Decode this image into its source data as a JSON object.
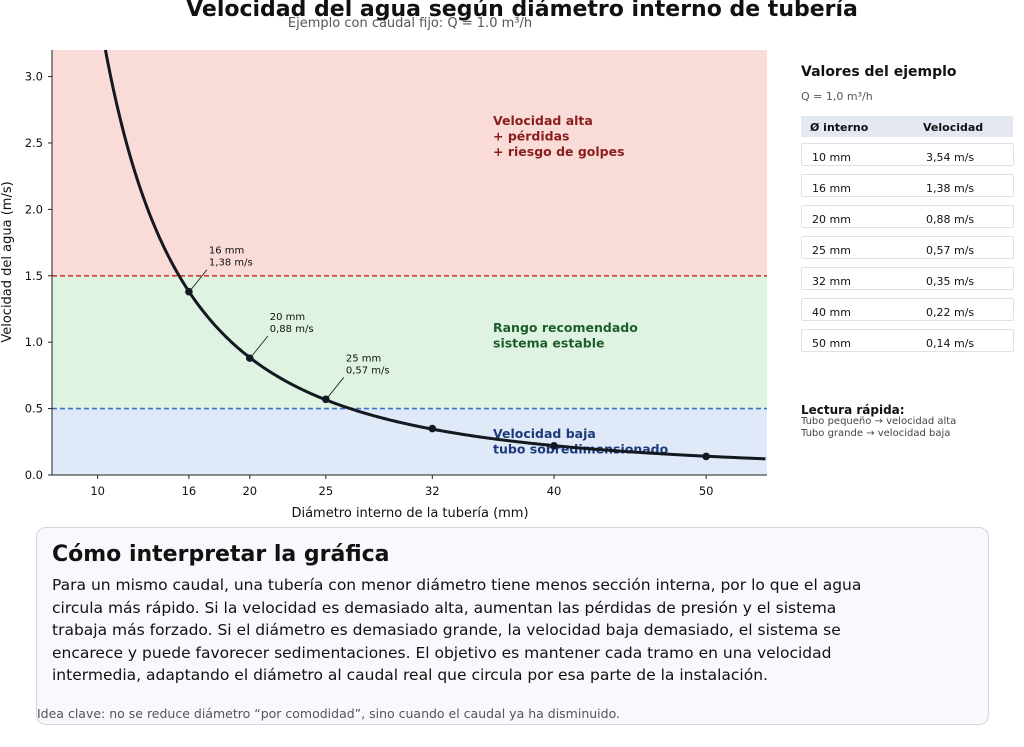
{
  "chart_data": {
    "type": "line",
    "title": "Velocidad del agua según diámetro interno de tubería",
    "subtitle": "Ejemplo con caudal fijo: Q = 1.0 m³/h",
    "xlabel": "Diámetro interno de la tubería (mm)",
    "ylabel": "Velocidad del agua (m/s)",
    "xlim": [
      7,
      54
    ],
    "ylim": [
      0,
      3.2
    ],
    "xticks": [
      10,
      16,
      20,
      25,
      32,
      40,
      50
    ],
    "yticks": [
      0.0,
      0.5,
      1.0,
      1.5,
      2.0,
      2.5,
      3.0
    ],
    "ytick_labels": [
      "0.0",
      "0.5",
      "1.0",
      "1.5",
      "2.0",
      "2.5",
      "3.0"
    ],
    "flow_m3h": 1.0,
    "curve": "v = Q / (3600 · π · (d/2000)²)",
    "points": [
      {
        "x": 16,
        "y": 1.38
      },
      {
        "x": 20,
        "y": 0.88
      },
      {
        "x": 25,
        "y": 0.57
      },
      {
        "x": 32,
        "y": 0.35
      },
      {
        "x": 40,
        "y": 0.22
      },
      {
        "x": 50,
        "y": 0.14
      }
    ],
    "annotations": [
      {
        "x": 16,
        "line1": "16 mm",
        "line2": "1,38 m/s"
      },
      {
        "x": 20,
        "line1": "20 mm",
        "line2": "0,88 m/s"
      },
      {
        "x": 25,
        "line1": "25 mm",
        "line2": "0,57 m/s"
      }
    ],
    "zones": [
      {
        "from": 1.5,
        "to": 3.2,
        "color": "#f9dcd8",
        "lines": [
          "Velocidad alta",
          "+ pérdidas",
          "+ riesgo de golpes"
        ],
        "text_color": "#8b1d1d"
      },
      {
        "from": 0.5,
        "to": 1.5,
        "color": "#dff3e2",
        "lines": [
          "Rango recomendado",
          "sistema estable"
        ],
        "text_color": "#1d5e2a"
      },
      {
        "from": 0.0,
        "to": 0.5,
        "color": "#dfe9f8",
        "lines": [
          "Velocidad baja",
          "tubo sobredimensionado"
        ],
        "text_color": "#1d3b7a"
      }
    ],
    "thresholds": [
      {
        "y": 1.5,
        "color": "#d23b2f"
      },
      {
        "y": 0.5,
        "color": "#3c74c9"
      }
    ],
    "colors": {
      "curve": "#141821",
      "axis": "#222222"
    },
    "grid": false
  },
  "side": {
    "title": "Valores del ejemplo",
    "subtitle": "Q = 1,0 m³/h",
    "col1": "Ø interno",
    "col2": "Velocidad",
    "rows": [
      {
        "d": "10 mm",
        "v": "3,54 m/s"
      },
      {
        "d": "16 mm",
        "v": "1,38 m/s"
      },
      {
        "d": "20 mm",
        "v": "0,88 m/s"
      },
      {
        "d": "25 mm",
        "v": "0,57 m/s"
      },
      {
        "d": "32 mm",
        "v": "0,35 m/s"
      },
      {
        "d": "40 mm",
        "v": "0,22 m/s"
      },
      {
        "d": "50 mm",
        "v": "0,14 m/s"
      }
    ],
    "quick_title": "Lectura rápida:",
    "quick_lines": [
      "Tubo pequeño → velocidad alta",
      "Tubo grande → velocidad baja"
    ]
  },
  "card": {
    "title": "Cómo interpretar la gráfica",
    "body": "Para un mismo caudal, una tubería con menor diámetro tiene menos sección interna, por lo que el agua circula más rápido. Si la velocidad es demasiado alta, aumentan las pérdidas de presión y el sistema trabaja más forzado. Si el diámetro es demasiado grande, la velocidad baja demasiado, el sistema se encarece y puede favorecer sedimentaciones. El objetivo es mantener cada tramo en una velocidad intermedia, adaptando el diámetro al caudal real que circula por esa parte de la instalación.",
    "note": "Idea clave: no se reduce diámetro “por comodidad”, sino cuando el caudal ya ha disminuido."
  }
}
